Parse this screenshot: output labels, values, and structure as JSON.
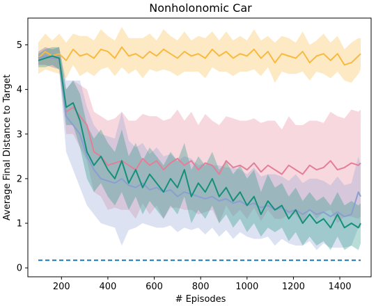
{
  "chart_data": {
    "type": "line",
    "title": "Nonholonomic Car",
    "xlabel": "# Episodes",
    "ylabel": "Average Final Distance to Target",
    "xlim": [
      55,
      1535
    ],
    "ylim": [
      -0.2,
      5.6
    ],
    "xticks": [
      200,
      400,
      600,
      800,
      1000,
      1200,
      1400
    ],
    "yticks": [
      0,
      1,
      2,
      3,
      4,
      5
    ],
    "grid": false,
    "series": [
      {
        "color": "#f9b93f",
        "x": [
          100,
          130,
          160,
          190,
          220,
          250,
          280,
          310,
          340,
          370,
          400,
          430,
          460,
          490,
          520,
          550,
          580,
          610,
          640,
          670,
          700,
          730,
          760,
          790,
          820,
          850,
          880,
          910,
          940,
          970,
          1000,
          1030,
          1060,
          1090,
          1120,
          1150,
          1180,
          1210,
          1240,
          1270,
          1300,
          1330,
          1360,
          1390,
          1420,
          1450,
          1480,
          1490
        ],
        "values": [
          4.7,
          4.85,
          4.75,
          4.8,
          4.65,
          4.9,
          4.75,
          4.8,
          4.7,
          4.9,
          4.85,
          4.7,
          4.95,
          4.75,
          4.8,
          4.7,
          4.85,
          4.75,
          4.9,
          4.8,
          4.7,
          4.85,
          4.75,
          4.8,
          4.7,
          4.9,
          4.75,
          4.85,
          4.7,
          4.8,
          4.75,
          4.9,
          4.7,
          4.85,
          4.6,
          4.8,
          4.75,
          4.7,
          4.85,
          4.6,
          4.75,
          4.8,
          4.65,
          4.8,
          4.55,
          4.6,
          4.75,
          4.8
        ],
        "band": [
          0.35,
          0.4,
          0.35,
          0.45,
          0.4,
          0.35,
          0.45,
          0.4,
          0.4,
          0.45,
          0.35,
          0.4,
          0.45,
          0.4,
          0.35,
          0.45,
          0.4,
          0.35,
          0.45,
          0.4,
          0.4,
          0.45,
          0.35,
          0.4,
          0.45,
          0.4,
          0.35,
          0.45,
          0.4,
          0.4,
          0.35,
          0.45,
          0.4,
          0.35,
          0.45,
          0.4,
          0.4,
          0.35,
          0.45,
          0.4,
          0.35,
          0.45,
          0.4,
          0.4,
          0.35,
          0.45,
          0.4,
          0.35
        ]
      },
      {
        "color": "#e47e96",
        "x": [
          100,
          130,
          160,
          190,
          220,
          250,
          280,
          310,
          340,
          370,
          400,
          430,
          460,
          490,
          520,
          550,
          580,
          610,
          640,
          670,
          700,
          730,
          760,
          790,
          820,
          850,
          880,
          910,
          940,
          970,
          1000,
          1030,
          1060,
          1090,
          1120,
          1150,
          1180,
          1210,
          1240,
          1270,
          1300,
          1330,
          1360,
          1390,
          1420,
          1450,
          1480,
          1490
        ],
        "values": [
          4.7,
          4.75,
          4.7,
          4.7,
          3.5,
          3.6,
          3.4,
          3.2,
          2.6,
          2.5,
          2.3,
          2.35,
          2.4,
          2.3,
          2.2,
          2.45,
          2.3,
          2.4,
          2.2,
          2.35,
          2.45,
          2.3,
          2.4,
          2.2,
          2.35,
          2.3,
          2.1,
          2.4,
          2.25,
          2.3,
          2.2,
          2.35,
          2.15,
          2.3,
          2.2,
          2.1,
          2.3,
          2.2,
          2.1,
          2.3,
          2.2,
          2.25,
          2.4,
          2.2,
          2.25,
          2.35,
          2.3,
          2.35
        ],
        "band": [
          0.15,
          0.2,
          0.2,
          0.25,
          0.5,
          0.6,
          0.7,
          0.8,
          0.9,
          0.9,
          1.0,
          1.0,
          1.1,
          1.0,
          1.1,
          1.0,
          1.1,
          1.0,
          1.1,
          1.0,
          1.1,
          1.0,
          1.1,
          1.0,
          1.1,
          1.0,
          1.1,
          1.0,
          1.1,
          1.0,
          1.1,
          1.0,
          1.1,
          1.0,
          1.1,
          1.0,
          1.1,
          1.0,
          1.1,
          1.0,
          1.1,
          1.0,
          1.1,
          1.2,
          1.1,
          1.2,
          1.2,
          1.2
        ]
      },
      {
        "color": "#8a9fd1",
        "x": [
          100,
          130,
          160,
          190,
          220,
          250,
          280,
          310,
          340,
          370,
          400,
          430,
          460,
          490,
          520,
          550,
          580,
          610,
          640,
          670,
          700,
          730,
          760,
          790,
          820,
          850,
          880,
          910,
          940,
          970,
          1000,
          1030,
          1060,
          1090,
          1120,
          1150,
          1180,
          1210,
          1240,
          1270,
          1300,
          1330,
          1360,
          1390,
          1420,
          1450,
          1480,
          1490
        ],
        "values": [
          4.7,
          4.75,
          4.7,
          4.7,
          3.4,
          3.2,
          3.0,
          2.5,
          2.2,
          2.0,
          1.95,
          1.9,
          2.0,
          1.85,
          1.8,
          1.9,
          1.75,
          1.8,
          1.7,
          1.75,
          1.6,
          1.7,
          1.65,
          1.6,
          1.55,
          1.6,
          1.5,
          1.55,
          1.45,
          1.5,
          1.4,
          1.45,
          1.35,
          1.4,
          1.3,
          1.35,
          1.25,
          1.3,
          1.2,
          1.3,
          1.2,
          1.25,
          1.15,
          1.25,
          1.15,
          1.2,
          1.7,
          1.6
        ],
        "band": [
          0.15,
          0.2,
          0.2,
          0.25,
          0.8,
          1.0,
          1.2,
          1.1,
          1.0,
          1.0,
          1.0,
          1.0,
          1.5,
          1.0,
          0.9,
          0.9,
          0.8,
          0.9,
          0.8,
          0.8,
          0.8,
          0.8,
          0.8,
          0.7,
          0.8,
          0.7,
          0.8,
          0.7,
          0.8,
          0.7,
          0.7,
          0.8,
          0.7,
          0.7,
          0.8,
          0.7,
          0.7,
          0.8,
          0.7,
          0.7,
          0.8,
          0.7,
          0.7,
          0.8,
          0.7,
          0.7,
          0.8,
          0.7
        ]
      },
      {
        "color": "#14907a",
        "x": [
          100,
          130,
          160,
          190,
          220,
          250,
          280,
          310,
          340,
          370,
          400,
          430,
          460,
          490,
          520,
          550,
          580,
          610,
          640,
          670,
          700,
          730,
          760,
          790,
          820,
          850,
          880,
          910,
          940,
          970,
          1000,
          1030,
          1060,
          1090,
          1120,
          1150,
          1180,
          1210,
          1240,
          1270,
          1300,
          1330,
          1360,
          1390,
          1420,
          1450,
          1480,
          1490
        ],
        "values": [
          4.65,
          4.7,
          4.75,
          4.7,
          3.6,
          3.7,
          3.3,
          2.6,
          2.3,
          2.5,
          2.2,
          2.0,
          2.4,
          1.9,
          2.2,
          1.8,
          2.1,
          1.9,
          1.7,
          2.0,
          1.8,
          2.2,
          1.6,
          1.9,
          1.7,
          2.0,
          1.6,
          1.8,
          1.5,
          1.7,
          1.4,
          1.6,
          1.2,
          1.5,
          1.3,
          1.4,
          1.1,
          1.3,
          1.0,
          1.2,
          1.0,
          1.1,
          0.9,
          1.2,
          0.9,
          1.0,
          0.9,
          1.0
        ],
        "band": [
          0.15,
          0.2,
          0.2,
          0.25,
          0.4,
          0.5,
          0.6,
          0.6,
          0.6,
          0.6,
          0.6,
          0.6,
          0.7,
          0.6,
          0.6,
          0.6,
          0.6,
          0.6,
          0.6,
          0.6,
          0.6,
          0.6,
          0.6,
          0.6,
          0.6,
          0.6,
          0.6,
          0.6,
          0.6,
          0.6,
          0.6,
          0.6,
          0.5,
          0.6,
          0.5,
          0.5,
          0.5,
          0.5,
          0.5,
          0.5,
          0.5,
          0.5,
          0.5,
          0.5,
          0.5,
          0.5,
          0.5,
          0.45
        ]
      }
    ],
    "reference_line": {
      "color": "#1f77b4",
      "style": "dashed",
      "x": [
        100,
        1490
      ],
      "y": 0.17
    }
  }
}
